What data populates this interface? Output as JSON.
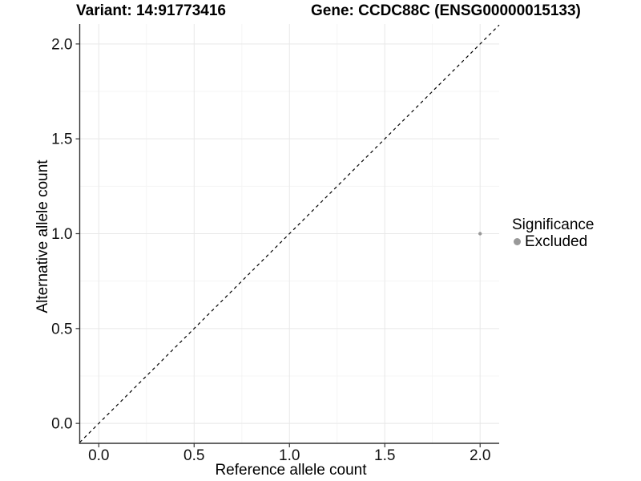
{
  "header": {
    "variant_title": "Variant: 14:91773416",
    "gene_title": "Gene: CCDC88C (ENSG00000015133)"
  },
  "chart_data": {
    "type": "scatter",
    "title": "Variant: 14:91773416   Gene: CCDC88C (ENSG00000015133)",
    "xlabel": "Reference allele count",
    "ylabel": "Alternative allele count",
    "xlim": [
      -0.1,
      2.1
    ],
    "ylim": [
      -0.105,
      2.105
    ],
    "x_major_ticks": [
      0.0,
      0.5,
      1.0,
      1.5,
      2.0
    ],
    "y_major_ticks": [
      0.0,
      0.5,
      1.0,
      1.5,
      2.0
    ],
    "x_tick_labels": [
      "0.0",
      "0.5",
      "1.0",
      "1.5",
      "2.0"
    ],
    "y_tick_labels": [
      "0.0",
      "0.5",
      "1.0",
      "1.5",
      "2.0"
    ],
    "x_minor_ticks": [
      0.25,
      0.75,
      1.25,
      1.75
    ],
    "y_minor_ticks": [
      0.25,
      0.75,
      1.25,
      1.75
    ],
    "grid": true,
    "series": [
      {
        "name": "Excluded",
        "color": "#999999",
        "points": [
          {
            "x": 2.0,
            "y": 1.0
          }
        ]
      }
    ],
    "reference_line": {
      "type": "identity",
      "slope": 1,
      "intercept": 0,
      "style": "dashed",
      "color": "#000000"
    },
    "legend": {
      "title": "Significance",
      "position": "right",
      "entries": [
        {
          "label": "Excluded",
          "color": "#999999"
        }
      ]
    },
    "colors": {
      "excluded_point": "#999999",
      "axis_line": "#333333",
      "major_grid": "#e8e8e8",
      "minor_grid": "#f4f4f4",
      "dashed_line": "#000000",
      "background": "#ffffff"
    }
  }
}
